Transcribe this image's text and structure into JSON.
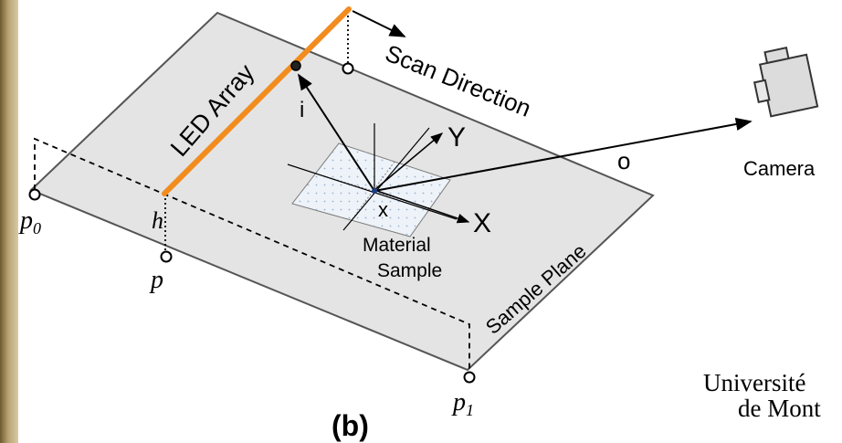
{
  "labels": {
    "led_array": "LED Array",
    "scan_direction": "Scan Direction",
    "camera": "Camera",
    "sample_plane": "Sample Plane",
    "material": "Material",
    "sample": "Sample",
    "i": "i",
    "o": "o",
    "x": "x",
    "X": "X",
    "Y": "Y",
    "h": "h",
    "p": "p",
    "p0_base": "p",
    "p0_sub": "0",
    "p1_base": "p",
    "p1_sub": "1",
    "caption": "(b)"
  },
  "university": {
    "line1": "Université",
    "line2": "de Mont"
  },
  "colors": {
    "plane_fill": "#e4e4e4",
    "led_orange": "#f28c1e",
    "line": "#000000",
    "sample_patch": "#e9f0f8",
    "camera_fill": "#dcdcdc"
  }
}
